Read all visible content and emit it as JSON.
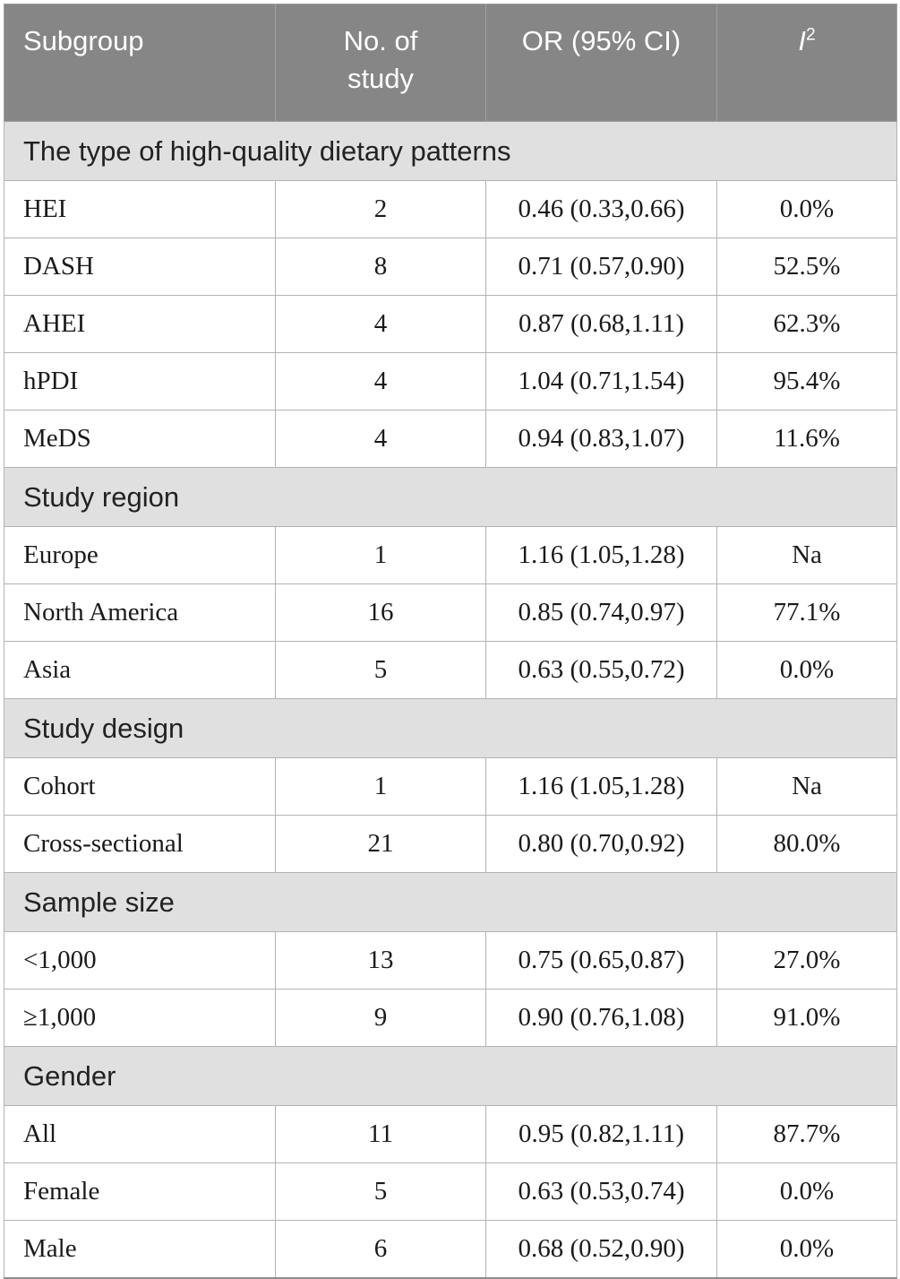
{
  "table": {
    "columns": {
      "subgroup": "Subgroup",
      "no_of_study": "No. of study",
      "or_ci": "OR (95% CI)",
      "i2_base": "I",
      "i2_sup": "2"
    },
    "sections": [
      {
        "header": "The type of high-quality dietary patterns",
        "rows": [
          {
            "subgroup": "HEI",
            "no_of_study": "2",
            "or_ci": "0.46 (0.33,0.66)",
            "i2": "0.0%"
          },
          {
            "subgroup": "DASH",
            "no_of_study": "8",
            "or_ci": "0.71 (0.57,0.90)",
            "i2": "52.5%"
          },
          {
            "subgroup": "AHEI",
            "no_of_study": "4",
            "or_ci": "0.87 (0.68,1.11)",
            "i2": "62.3%"
          },
          {
            "subgroup": "hPDI",
            "no_of_study": "4",
            "or_ci": "1.04 (0.71,1.54)",
            "i2": "95.4%"
          },
          {
            "subgroup": "MeDS",
            "no_of_study": "4",
            "or_ci": "0.94 (0.83,1.07)",
            "i2": "11.6%"
          }
        ]
      },
      {
        "header": "Study region",
        "rows": [
          {
            "subgroup": "Europe",
            "no_of_study": "1",
            "or_ci": "1.16 (1.05,1.28)",
            "i2": "Na"
          },
          {
            "subgroup": "North America",
            "no_of_study": "16",
            "or_ci": "0.85 (0.74,0.97)",
            "i2": "77.1%"
          },
          {
            "subgroup": "Asia",
            "no_of_study": "5",
            "or_ci": "0.63 (0.55,0.72)",
            "i2": "0.0%"
          }
        ]
      },
      {
        "header": "Study design",
        "rows": [
          {
            "subgroup": "Cohort",
            "no_of_study": "1",
            "or_ci": "1.16 (1.05,1.28)",
            "i2": "Na"
          },
          {
            "subgroup": "Cross-sectional",
            "no_of_study": "21",
            "or_ci": "0.80 (0.70,0.92)",
            "i2": "80.0%"
          }
        ]
      },
      {
        "header": "Sample size",
        "rows": [
          {
            "subgroup": "<1,000",
            "no_of_study": "13",
            "or_ci": "0.75 (0.65,0.87)",
            "i2": "27.0%"
          },
          {
            "subgroup": "≥1,000",
            "no_of_study": "9",
            "or_ci": "0.90 (0.76,1.08)",
            "i2": "91.0%"
          }
        ]
      },
      {
        "header": "Gender",
        "rows": [
          {
            "subgroup": "All",
            "no_of_study": "11",
            "or_ci": "0.95 (0.82,1.11)",
            "i2": "87.7%"
          },
          {
            "subgroup": "Female",
            "no_of_study": "5",
            "or_ci": "0.63 (0.53,0.74)",
            "i2": "0.0%"
          },
          {
            "subgroup": "Male",
            "no_of_study": "6",
            "or_ci": "0.68 (0.52,0.90)",
            "i2": "0.0%"
          }
        ]
      }
    ],
    "colors": {
      "header_bg": "#868686",
      "header_text": "#ffffff",
      "section_bg": "#e0e0e0",
      "body_text": "#1a1a1a",
      "border": "#b3b3b3"
    }
  }
}
